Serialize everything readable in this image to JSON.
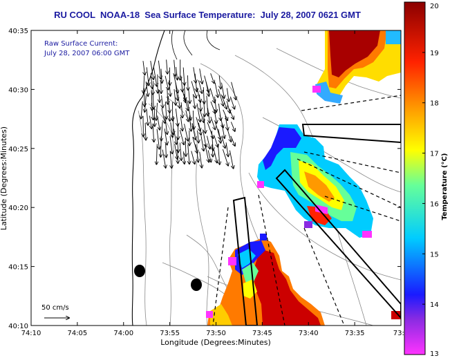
{
  "title": "RU COOL  NOAA-18  Sea Surface Temperature:  July 28, 2007 0621 GMT",
  "annotation": {
    "line1": "Raw Surface Current:",
    "line2": "July 28, 2007 06:00 GMT",
    "color": "#1a1aa0"
  },
  "axes": {
    "x_label": "Longitude (Degrees:Minutes)",
    "y_label": "Latitude (Degrees:Minutes)",
    "x_ticks": [
      "74:10",
      "74:05",
      "74:00",
      "73:55",
      "73:50",
      "73:45",
      "73:40",
      "73:35",
      "73:3"
    ],
    "y_ticks": [
      "40:35",
      "40:30",
      "40:25",
      "40:20",
      "40:15",
      "40:10"
    ]
  },
  "scale_bar": {
    "label": "50 cm/s"
  },
  "colorbar": {
    "label": "Temperature (°C)",
    "ticks": [
      "20",
      "19",
      "18",
      "17",
      "16",
      "15",
      "14",
      "13"
    ],
    "min": 13,
    "max": 20,
    "stops": [
      "#ff33ff",
      "#1a1aff",
      "#00ccff",
      "#66ff99",
      "#ffff00",
      "#ff9900",
      "#ff2200",
      "#8b0000"
    ]
  }
}
